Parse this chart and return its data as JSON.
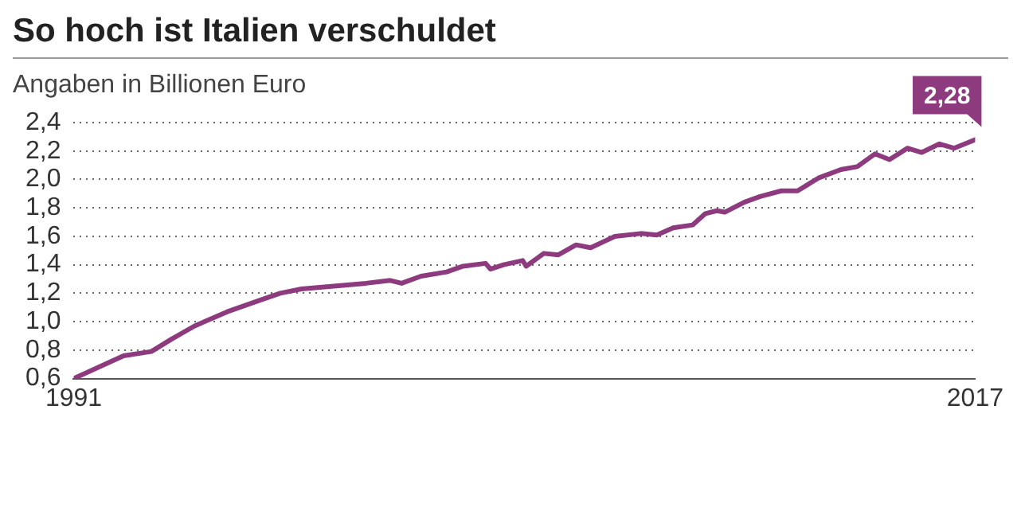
{
  "chart_data": {
    "type": "line",
    "title": "So hoch ist Italien verschuldet",
    "subtitle": "Angaben in Billionen Euro",
    "x": [
      1991,
      1992.44,
      1993.24,
      1993.84,
      1994.49,
      1995.43,
      1996.36,
      1996.96,
      1997.57,
      1998.5,
      1999.43,
      2000.13,
      2000.46,
      2001.02,
      2001.76,
      2002.23,
      2002.88,
      2003.02,
      2003.4,
      2003.95,
      2004.05,
      2004.56,
      2004.98,
      2005.49,
      2005.91,
      2006.61,
      2007.36,
      2007.82,
      2008.29,
      2008.85,
      2009.22,
      2009.55,
      2009.78,
      2010.34,
      2010.8,
      2011.41,
      2011.88,
      2012.48,
      2013.13,
      2013.6,
      2014.11,
      2014.53,
      2015.05,
      2015.46,
      2015.97,
      2016.39,
      2017
    ],
    "series": [
      {
        "color": "#8e3a7f",
        "values": [
          0.6,
          0.76,
          0.79,
          0.88,
          0.97,
          1.07,
          1.15,
          1.2,
          1.23,
          1.25,
          1.27,
          1.29,
          1.27,
          1.32,
          1.35,
          1.39,
          1.41,
          1.37,
          1.4,
          1.43,
          1.39,
          1.48,
          1.47,
          1.54,
          1.52,
          1.6,
          1.62,
          1.61,
          1.66,
          1.68,
          1.76,
          1.78,
          1.77,
          1.84,
          1.88,
          1.92,
          1.92,
          2.01,
          2.07,
          2.09,
          2.18,
          2.14,
          2.22,
          2.19,
          2.25,
          2.22,
          2.28
        ]
      }
    ],
    "xlim": [
      1991,
      2017
    ],
    "xticks": [
      1991,
      2017
    ],
    "ylim": [
      0.6,
      2.4
    ],
    "yticks": [
      {
        "value": 0.6,
        "label": "0,6"
      },
      {
        "value": 0.8,
        "label": "0,8"
      },
      {
        "value": 1.0,
        "label": "1,0"
      },
      {
        "value": 1.2,
        "label": "1,2"
      },
      {
        "value": 1.4,
        "label": "1,4"
      },
      {
        "value": 1.6,
        "label": "1,6"
      },
      {
        "value": 1.8,
        "label": "1,8"
      },
      {
        "value": 2.0,
        "label": "2,0"
      },
      {
        "value": 2.2,
        "label": "2,2"
      },
      {
        "value": 2.4,
        "label": "2,4"
      }
    ],
    "grid": "y",
    "legend": false,
    "marker": "none",
    "line_style": "solid",
    "annotations": [
      {
        "text": "2,28",
        "x": 2017,
        "y": 2.28
      }
    ]
  }
}
